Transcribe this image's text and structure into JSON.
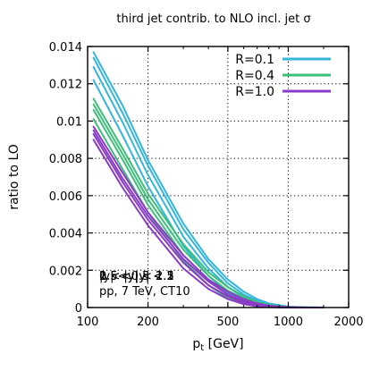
{
  "chart_data": {
    "type": "line",
    "title": "third jet contrib. to NLO incl. jet σ",
    "xlabel": "p",
    "xlabel_sub": "t",
    "xlabel_unit": " [GeV]",
    "ylabel": "ratio to LO",
    "x_scale": "log",
    "xlim": [
      100,
      2000
    ],
    "ylim": [
      0,
      0.014
    ],
    "x_ticks": [
      100,
      200,
      500,
      1000,
      2000
    ],
    "x_tick_labels": [
      "100",
      "200",
      "500",
      "1000",
      "2000"
    ],
    "y_ticks": [
      0,
      0.002,
      0.004,
      0.006,
      0.008,
      0.01,
      0.012,
      0.014
    ],
    "y_tick_labels": [
      "0",
      "0.002",
      "0.004",
      "0.006",
      "0.008",
      "0.01",
      "0.012",
      "0.014"
    ],
    "grid": true,
    "legend_position": "top-right",
    "legend": [
      {
        "label": "R=0.1",
        "color": "#33b5dd"
      },
      {
        "label": "R=0.4",
        "color": "#3cbf78"
      },
      {
        "label": "R=1.0",
        "color": "#8a3cc6"
      }
    ],
    "annotation_lines": [
      "|y| < 0.5",
      "0.5 < |y| < 1",
      "1 < |y| < 1.5",
      "1.5 < |y| < 2",
      "2 < |y| < 2.5",
      "pp, 7 TeV, CT10"
    ],
    "series": [
      {
        "group": "R=0.1",
        "color": "#33b5dd",
        "x": [
          107,
          150,
          200,
          300,
          400,
          500,
          600,
          700,
          800,
          1000,
          1200,
          1500
        ],
        "y": [
          0.0137,
          0.0108,
          0.0079,
          0.0045,
          0.0026,
          0.0015,
          0.00085,
          0.00045,
          0.00022,
          5e-05,
          1e-05,
          0
        ]
      },
      {
        "group": "R=0.1",
        "color": "#33b5dd",
        "x": [
          107,
          150,
          200,
          300,
          400,
          500,
          600,
          700,
          800,
          1000,
          1200,
          1500
        ],
        "y": [
          0.0134,
          0.0104,
          0.0076,
          0.0042,
          0.0024,
          0.0013,
          0.0007,
          0.00035,
          0.00016,
          3e-05,
          1e-05,
          0
        ]
      },
      {
        "group": "R=0.1",
        "color": "#33b5dd",
        "x": [
          107,
          150,
          200,
          300,
          400,
          500,
          600,
          700,
          800,
          1000,
          1200,
          1500
        ],
        "y": [
          0.0129,
          0.0099,
          0.0071,
          0.0038,
          0.0021,
          0.0011,
          0.00055,
          0.00026,
          0.0001,
          2e-05,
          0,
          0
        ]
      },
      {
        "group": "R=0.1",
        "color": "#33b5dd",
        "x": [
          107,
          150,
          200,
          300,
          400,
          500,
          600,
          700,
          800,
          1000,
          1200,
          1500
        ],
        "y": [
          0.0122,
          0.0092,
          0.0065,
          0.0033,
          0.0017,
          0.0008,
          0.00038,
          0.00015,
          5e-05,
          1e-05,
          0,
          0
        ]
      },
      {
        "group": "R=0.4",
        "color": "#3cbf78",
        "x": [
          107,
          150,
          200,
          300,
          400,
          500,
          600,
          700,
          800,
          1000,
          1200,
          1500
        ],
        "y": [
          0.0112,
          0.0085,
          0.0061,
          0.0034,
          0.0019,
          0.0011,
          0.0006,
          0.0003,
          0.00014,
          3e-05,
          1e-05,
          0
        ]
      },
      {
        "group": "R=0.4",
        "color": "#3cbf78",
        "x": [
          107,
          150,
          200,
          300,
          400,
          500,
          600,
          700,
          800,
          1000,
          1200,
          1500
        ],
        "y": [
          0.0109,
          0.0082,
          0.0058,
          0.0031,
          0.0017,
          0.0009,
          0.00048,
          0.00022,
          0.0001,
          2e-05,
          0,
          0
        ]
      },
      {
        "group": "R=0.4",
        "color": "#3cbf78",
        "x": [
          107,
          150,
          200,
          300,
          400,
          500,
          600,
          700,
          800,
          1000,
          1200,
          1500
        ],
        "y": [
          0.0106,
          0.0079,
          0.0055,
          0.0028,
          0.0015,
          0.0007,
          0.00035,
          0.00015,
          6e-05,
          1e-05,
          0,
          0
        ]
      },
      {
        "group": "R=0.4",
        "color": "#3cbf78",
        "x": [
          107,
          150,
          200,
          300,
          400,
          500,
          600,
          700,
          800,
          1000,
          1200,
          1500
        ],
        "y": [
          0.0101,
          0.0074,
          0.0051,
          0.0025,
          0.0012,
          0.0005,
          0.00022,
          8e-05,
          3e-05,
          0,
          0,
          0
        ]
      },
      {
        "group": "R=1.0",
        "color": "#8a3cc6",
        "x": [
          107,
          150,
          200,
          300,
          400,
          500,
          600,
          700,
          800,
          1000,
          1200,
          1500
        ],
        "y": [
          0.0097,
          0.0072,
          0.0051,
          0.0028,
          0.0015,
          0.00085,
          0.00045,
          0.00022,
          0.0001,
          2e-05,
          0,
          0
        ]
      },
      {
        "group": "R=1.0",
        "color": "#8a3cc6",
        "x": [
          107,
          150,
          200,
          300,
          400,
          500,
          600,
          700,
          800,
          1000,
          1200,
          1500
        ],
        "y": [
          0.0095,
          0.0069,
          0.0049,
          0.0026,
          0.0014,
          0.0007,
          0.00035,
          0.00016,
          7e-05,
          1e-05,
          0,
          0
        ]
      },
      {
        "group": "R=1.0",
        "color": "#8a3cc6",
        "x": [
          107,
          150,
          200,
          300,
          400,
          500,
          600,
          700,
          800,
          1000,
          1200,
          1500
        ],
        "y": [
          0.0093,
          0.0067,
          0.0047,
          0.0024,
          0.0012,
          0.0006,
          0.00026,
          0.0001,
          4e-05,
          0,
          0,
          0
        ]
      },
      {
        "group": "R=1.0",
        "color": "#8a3cc6",
        "x": [
          107,
          150,
          200,
          300,
          400,
          500,
          600,
          700,
          800,
          1000,
          1200,
          1500
        ],
        "y": [
          0.009,
          0.0064,
          0.0044,
          0.0021,
          0.001,
          0.00045,
          0.00018,
          6e-05,
          2e-05,
          0,
          0,
          0
        ]
      }
    ]
  }
}
